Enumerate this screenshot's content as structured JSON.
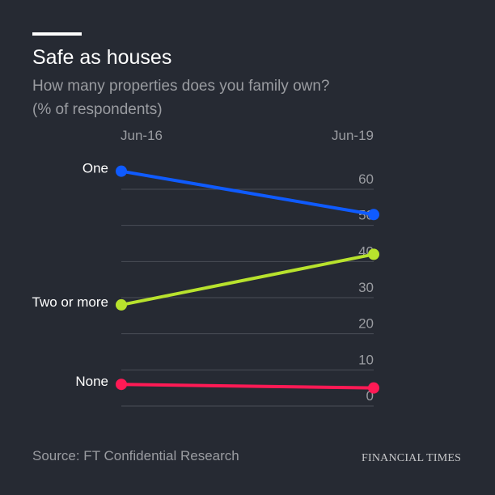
{
  "header": {
    "title": "Safe as houses",
    "subtitle_line1": "How many properties does you family own?",
    "subtitle_line2": "(% of respondents)"
  },
  "footer": {
    "source": "Source: FT Confidential Research",
    "brand": "FINANCIAL TIMES"
  },
  "colors": {
    "background": "#262a33",
    "grid": "#4a4e57",
    "tick": "#9a9ca1",
    "label": "#ffffff"
  },
  "chart_data": {
    "type": "line",
    "title": "Safe as houses",
    "subtitle": "How many properties does you family own? (% of respondents)",
    "categories": [
      "Jun-16",
      "Jun-19"
    ],
    "ylim": [
      0,
      60
    ],
    "yticks": [
      0,
      10,
      20,
      30,
      40,
      50,
      60
    ],
    "grid": true,
    "series": [
      {
        "name": "One",
        "values": [
          65,
          53
        ],
        "color": "#0f5bff"
      },
      {
        "name": "Two or more",
        "values": [
          28,
          42
        ],
        "color": "#b8e22d"
      },
      {
        "name": "None",
        "values": [
          6,
          5
        ],
        "color": "#ff1a55"
      }
    ]
  }
}
